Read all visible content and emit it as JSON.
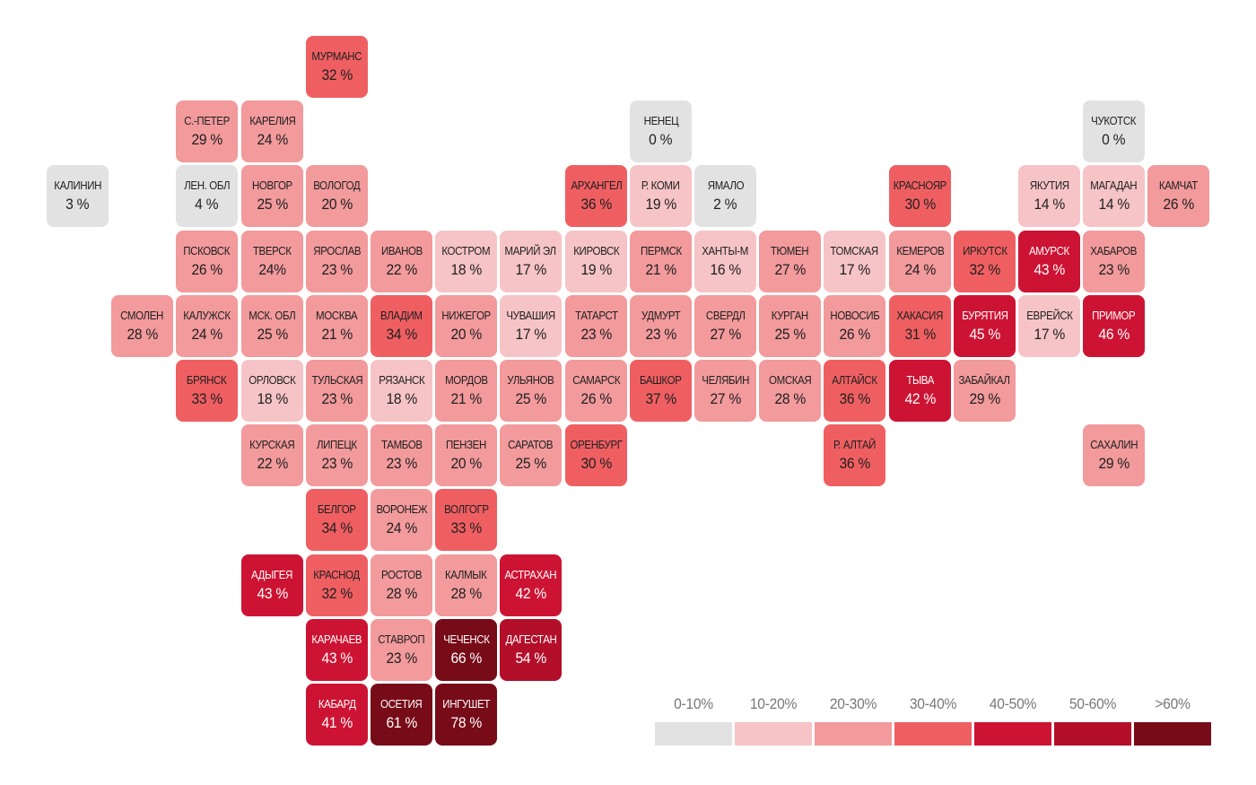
{
  "legend": [
    {
      "label": "0-10%",
      "color": "#e2e2e2"
    },
    {
      "label": "10-20%",
      "color": "#f6c4c6"
    },
    {
      "label": "20-30%",
      "color": "#f29a9c"
    },
    {
      "label": "30-40%",
      "color": "#ef5f62"
    },
    {
      "label": "40-50%",
      "color": "#cd1333"
    },
    {
      "label": "50-60%",
      "color": "#b30f2a"
    },
    {
      "label": ">60%",
      "color": "#770b18"
    }
  ],
  "regions": [
    {
      "name": "МУРМАНС",
      "value": "32 %",
      "pct": 32,
      "col": 4,
      "row": 0
    },
    {
      "name": "С.-ПЕТЕР",
      "value": "29 %",
      "pct": 29,
      "col": 2,
      "row": 1
    },
    {
      "name": "КАРЕЛИЯ",
      "value": "24 %",
      "pct": 24,
      "col": 3,
      "row": 1
    },
    {
      "name": "НЕНЕЦ",
      "value": "0 %",
      "pct": 0,
      "col": 9,
      "row": 1
    },
    {
      "name": "ЧУКОТСК",
      "value": "0 %",
      "pct": 0,
      "col": 16,
      "row": 1
    },
    {
      "name": "КАЛИНИН",
      "value": "3 %",
      "pct": 3,
      "col": 0,
      "row": 2
    },
    {
      "name": "ЛЕН. ОБЛ",
      "value": "4 %",
      "pct": 4,
      "col": 2,
      "row": 2
    },
    {
      "name": "НОВГОР",
      "value": "25 %",
      "pct": 25,
      "col": 3,
      "row": 2
    },
    {
      "name": "ВОЛОГОД",
      "value": "20 %",
      "pct": 20,
      "col": 4,
      "row": 2
    },
    {
      "name": "АРХАНГЕЛ",
      "value": "36 %",
      "pct": 36,
      "col": 8,
      "row": 2
    },
    {
      "name": "Р. КОМИ",
      "value": "19 %",
      "pct": 19,
      "col": 9,
      "row": 2
    },
    {
      "name": "ЯМАЛО",
      "value": "2 %",
      "pct": 2,
      "col": 10,
      "row": 2
    },
    {
      "name": "КРАСНОЯР",
      "value": "30 %",
      "pct": 30,
      "col": 13,
      "row": 2
    },
    {
      "name": "ЯКУТИЯ",
      "value": "14 %",
      "pct": 14,
      "col": 15,
      "row": 2
    },
    {
      "name": "МАГАДАН",
      "value": "14 %",
      "pct": 14,
      "col": 16,
      "row": 2
    },
    {
      "name": "КАМЧАТ",
      "value": "26 %",
      "pct": 26,
      "col": 17,
      "row": 2
    },
    {
      "name": "ПСКОВСК",
      "value": "26 %",
      "pct": 26,
      "col": 2,
      "row": 3
    },
    {
      "name": "ТВЕРСК",
      "value": "24%",
      "pct": 24,
      "col": 3,
      "row": 3
    },
    {
      "name": "ЯРОСЛАВ",
      "value": "23 %",
      "pct": 23,
      "col": 4,
      "row": 3
    },
    {
      "name": "ИВАНОВ",
      "value": "22 %",
      "pct": 22,
      "col": 5,
      "row": 3
    },
    {
      "name": "КОСТРОМ",
      "value": "18 %",
      "pct": 18,
      "col": 6,
      "row": 3
    },
    {
      "name": "МАРИЙ ЭЛ",
      "value": "17 %",
      "pct": 17,
      "col": 7,
      "row": 3
    },
    {
      "name": "КИРОВСК",
      "value": "19 %",
      "pct": 19,
      "col": 8,
      "row": 3
    },
    {
      "name": "ПЕРМСК",
      "value": "21 %",
      "pct": 21,
      "col": 9,
      "row": 3
    },
    {
      "name": "ХАНТЫ-М",
      "value": "16 %",
      "pct": 16,
      "col": 10,
      "row": 3
    },
    {
      "name": "ТЮМЕН",
      "value": "27 %",
      "pct": 27,
      "col": 11,
      "row": 3
    },
    {
      "name": "ТОМСКАЯ",
      "value": "17 %",
      "pct": 17,
      "col": 12,
      "row": 3
    },
    {
      "name": "КЕМЕРОВ",
      "value": "24 %",
      "pct": 24,
      "col": 13,
      "row": 3
    },
    {
      "name": "ИРКУТСК",
      "value": "32 %",
      "pct": 32,
      "col": 14,
      "row": 3
    },
    {
      "name": "АМУРСК",
      "value": "43 %",
      "pct": 43,
      "col": 15,
      "row": 3
    },
    {
      "name": "ХАБАРОВ",
      "value": "23 %",
      "pct": 23,
      "col": 16,
      "row": 3
    },
    {
      "name": "СМОЛЕН",
      "value": "28 %",
      "pct": 28,
      "col": 1,
      "row": 4
    },
    {
      "name": "КАЛУЖСК",
      "value": "24 %",
      "pct": 24,
      "col": 2,
      "row": 4
    },
    {
      "name": "МСК. ОБЛ",
      "value": "25 %",
      "pct": 25,
      "col": 3,
      "row": 4
    },
    {
      "name": "МОСКВА",
      "value": "21 %",
      "pct": 21,
      "col": 4,
      "row": 4
    },
    {
      "name": "ВЛАДИМ",
      "value": "34 %",
      "pct": 34,
      "col": 5,
      "row": 4
    },
    {
      "name": "НИЖЕГОР",
      "value": "20 %",
      "pct": 20,
      "col": 6,
      "row": 4
    },
    {
      "name": "ЧУВАШИЯ",
      "value": "17 %",
      "pct": 17,
      "col": 7,
      "row": 4
    },
    {
      "name": "ТАТАРСТ",
      "value": "23 %",
      "pct": 23,
      "col": 8,
      "row": 4
    },
    {
      "name": "УДМУРТ",
      "value": "23 %",
      "pct": 23,
      "col": 9,
      "row": 4
    },
    {
      "name": "СВЕРДЛ",
      "value": "27 %",
      "pct": 27,
      "col": 10,
      "row": 4
    },
    {
      "name": "КУРГАН",
      "value": "25 %",
      "pct": 25,
      "col": 11,
      "row": 4
    },
    {
      "name": "НОВОСИБ",
      "value": "26 %",
      "pct": 26,
      "col": 12,
      "row": 4
    },
    {
      "name": "ХАКАСИЯ",
      "value": "31 %",
      "pct": 31,
      "col": 13,
      "row": 4
    },
    {
      "name": "БУРЯТИЯ",
      "value": "45 %",
      "pct": 45,
      "col": 14,
      "row": 4
    },
    {
      "name": "ЕВРЕЙСК",
      "value": "17 %",
      "pct": 17,
      "col": 15,
      "row": 4
    },
    {
      "name": "ПРИМОР",
      "value": "46 %",
      "pct": 46,
      "col": 16,
      "row": 4
    },
    {
      "name": "БРЯНСК",
      "value": "33 %",
      "pct": 33,
      "col": 2,
      "row": 5
    },
    {
      "name": "ОРЛОВСК",
      "value": "18 %",
      "pct": 18,
      "col": 3,
      "row": 5
    },
    {
      "name": "ТУЛЬСКАЯ",
      "value": "23 %",
      "pct": 23,
      "col": 4,
      "row": 5
    },
    {
      "name": "РЯЗАНСК",
      "value": "18 %",
      "pct": 18,
      "col": 5,
      "row": 5
    },
    {
      "name": "МОРДОВ",
      "value": "21 %",
      "pct": 21,
      "col": 6,
      "row": 5
    },
    {
      "name": "УЛЬЯНОВ",
      "value": "25 %",
      "pct": 25,
      "col": 7,
      "row": 5
    },
    {
      "name": "САМАРСК",
      "value": "26 %",
      "pct": 26,
      "col": 8,
      "row": 5
    },
    {
      "name": "БАШКОР",
      "value": "37 %",
      "pct": 37,
      "col": 9,
      "row": 5
    },
    {
      "name": "ЧЕЛЯБИН",
      "value": "27 %",
      "pct": 27,
      "col": 10,
      "row": 5
    },
    {
      "name": "ОМСКАЯ",
      "value": "28 %",
      "pct": 28,
      "col": 11,
      "row": 5
    },
    {
      "name": "АЛТАЙСК",
      "value": "36 %",
      "pct": 36,
      "col": 12,
      "row": 5
    },
    {
      "name": "ТЫВА",
      "value": "42 %",
      "pct": 42,
      "col": 13,
      "row": 5
    },
    {
      "name": "ЗАБАЙКАЛ",
      "value": "29 %",
      "pct": 29,
      "col": 14,
      "row": 5
    },
    {
      "name": "КУРСКАЯ",
      "value": "22 %",
      "pct": 22,
      "col": 3,
      "row": 6
    },
    {
      "name": "ЛИПЕЦК",
      "value": "23 %",
      "pct": 23,
      "col": 4,
      "row": 6
    },
    {
      "name": "ТАМБОВ",
      "value": "23 %",
      "pct": 23,
      "col": 5,
      "row": 6
    },
    {
      "name": "ПЕНЗЕН",
      "value": "20 %",
      "pct": 20,
      "col": 6,
      "row": 6
    },
    {
      "name": "САРАТОВ",
      "value": "25 %",
      "pct": 25,
      "col": 7,
      "row": 6
    },
    {
      "name": "ОРЕНБУРГ",
      "value": "30 %",
      "pct": 30,
      "col": 8,
      "row": 6
    },
    {
      "name": "Р. АЛТАЙ",
      "value": "36 %",
      "pct": 36,
      "col": 12,
      "row": 6
    },
    {
      "name": "САХАЛИН",
      "value": "29 %",
      "pct": 29,
      "col": 16,
      "row": 6
    },
    {
      "name": "БЕЛГОР",
      "value": "34 %",
      "pct": 34,
      "col": 4,
      "row": 7
    },
    {
      "name": "ВОРОНЕЖ",
      "value": "24 %",
      "pct": 24,
      "col": 5,
      "row": 7
    },
    {
      "name": "ВОЛГОГР",
      "value": "33 %",
      "pct": 33,
      "col": 6,
      "row": 7
    },
    {
      "name": "АДЫГЕЯ",
      "value": "43 %",
      "pct": 43,
      "col": 3,
      "row": 8
    },
    {
      "name": "КРАСНОД",
      "value": "32 %",
      "pct": 32,
      "col": 4,
      "row": 8
    },
    {
      "name": "РОСТОВ",
      "value": "28 %",
      "pct": 28,
      "col": 5,
      "row": 8
    },
    {
      "name": "КАЛМЫК",
      "value": "28 %",
      "pct": 28,
      "col": 6,
      "row": 8
    },
    {
      "name": "АСТРАХАН",
      "value": "42 %",
      "pct": 42,
      "col": 7,
      "row": 8
    },
    {
      "name": "КАРАЧАЕВ",
      "value": "43 %",
      "pct": 43,
      "col": 4,
      "row": 9
    },
    {
      "name": "СТАВРОП",
      "value": "23 %",
      "pct": 23,
      "col": 5,
      "row": 9
    },
    {
      "name": "ЧЕЧЕНСК",
      "value": "66 %",
      "pct": 66,
      "col": 6,
      "row": 9
    },
    {
      "name": "ДАГЕСТАН",
      "value": "54 %",
      "pct": 54,
      "col": 7,
      "row": 9
    },
    {
      "name": "КАБАРД",
      "value": "41 %",
      "pct": 41,
      "col": 4,
      "row": 10
    },
    {
      "name": "ОСЕТИЯ",
      "value": "61 %",
      "pct": 61,
      "col": 5,
      "row": 10
    },
    {
      "name": "ИНГУШЕТ",
      "value": "78 %",
      "pct": 78,
      "col": 6,
      "row": 10
    }
  ]
}
